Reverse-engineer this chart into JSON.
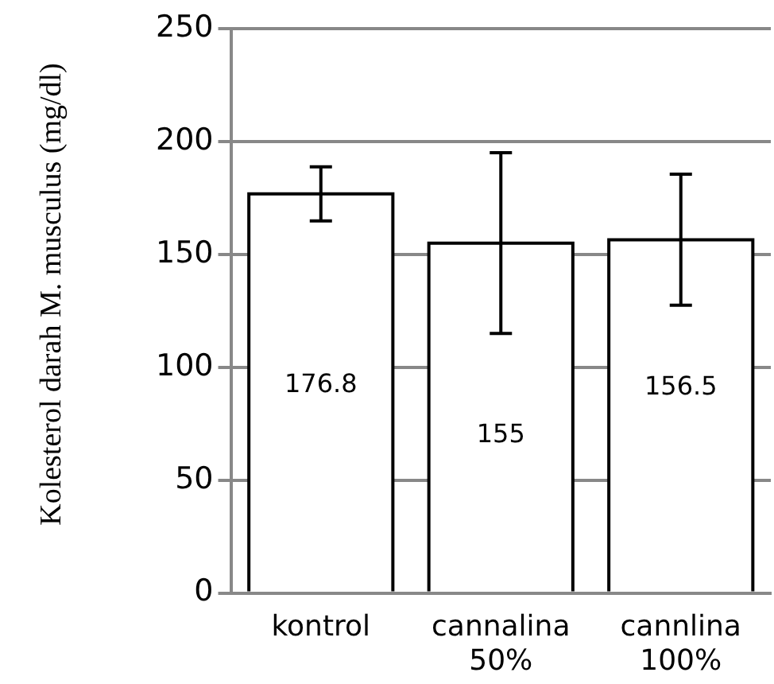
{
  "chart_data": {
    "type": "bar",
    "ylabel": "Kolesterol darah M. musculus (mg/dl)",
    "categories": [
      "kontrol",
      "cannalina 50%",
      "cannlina 100%"
    ],
    "values": [
      176.8,
      155,
      156.5
    ],
    "errors": [
      12,
      40,
      29
    ],
    "color": "#ffffff",
    "ylim": [
      0,
      250
    ],
    "yticks": [
      0,
      50,
      100,
      150,
      200,
      250
    ],
    "grid": "y",
    "data_labels": true,
    "legend": false
  }
}
